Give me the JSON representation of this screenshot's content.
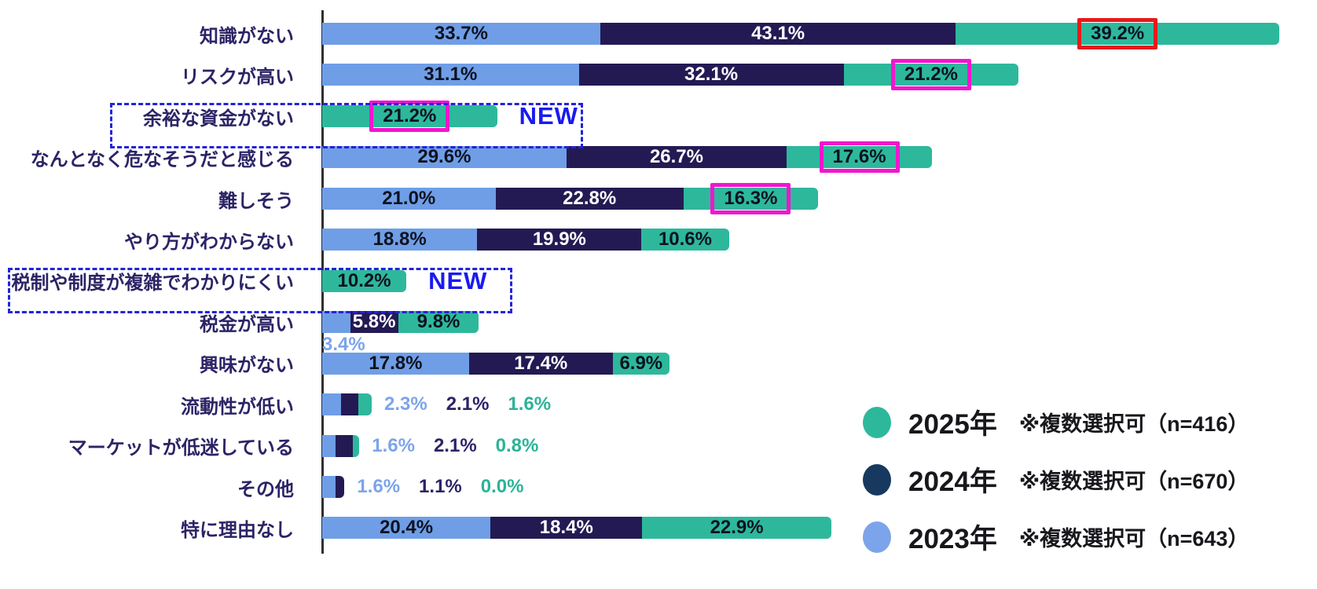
{
  "chart_data": {
    "type": "bar",
    "orientation": "horizontal-stacked",
    "title": "",
    "xlabel": "",
    "ylabel": "",
    "value_unit": "%",
    "categories": [
      "知識がない",
      "リスクが高い",
      "余裕な資金がない",
      "なんとなく危なそうだと感じる",
      "難しそう",
      "やり方がわからない",
      "税制や制度が複雑でわかりにくい",
      "税金が高い",
      "興味がない",
      "流動性が低い",
      "マーケットが低迷している",
      "その他",
      "特に理由なし"
    ],
    "series": [
      {
        "name": "2023年",
        "note": "※複数選択可（n=643）",
        "bar_color": "#6f9ee6",
        "text_color": "#7ca4ea",
        "values": [
          33.7,
          31.1,
          null,
          29.6,
          21.0,
          18.8,
          null,
          3.4,
          17.8,
          2.3,
          1.6,
          1.6,
          20.4
        ]
      },
      {
        "name": "2024年",
        "note": "※複数選択可（n=670）",
        "bar_color": "#241a53",
        "text_color": "#2b2466",
        "values": [
          43.1,
          32.1,
          null,
          26.7,
          22.8,
          19.9,
          null,
          5.8,
          17.4,
          2.1,
          2.1,
          1.1,
          18.4
        ]
      },
      {
        "name": "2025年",
        "note": "※複数選択可（n=416）",
        "bar_color": "#2db89c",
        "text_color": "#2bb398",
        "values": [
          39.2,
          21.2,
          21.2,
          17.6,
          16.3,
          10.6,
          10.2,
          9.8,
          6.9,
          1.6,
          0.8,
          0.0,
          22.9
        ]
      }
    ],
    "legend": [
      {
        "label": "2025年",
        "note": "※複数選択可（n=416）",
        "color": "#2db89c"
      },
      {
        "label": "2024年",
        "note": "※複数選択可（n=670）",
        "color": "#17395f"
      },
      {
        "label": "2023年",
        "note": "※複数選択可（n=643）",
        "color": "#7ca4ea"
      }
    ],
    "legend_position": "bottom-right",
    "grid": false,
    "new_badge_text": "NEW",
    "new_rows": [
      2,
      6
    ],
    "outside_label_rows": [
      9,
      10,
      11
    ],
    "below_label_rows": [
      7
    ],
    "highlights": [
      {
        "row": 0,
        "series": "2025年",
        "style": "red-box"
      },
      {
        "row": 1,
        "series": "2025年",
        "style": "magenta-box"
      },
      {
        "row": 2,
        "series": "2025年",
        "style": "magenta-box"
      },
      {
        "row": 3,
        "series": "2025年",
        "style": "magenta-box"
      },
      {
        "row": 4,
        "series": "2025年",
        "style": "magenta-box"
      }
    ],
    "colors": {
      "highlight_red": "#e8191b",
      "highlight_magenta": "#f116ce",
      "new_text": "#1a1af0",
      "dashed_outline": "#2323d9",
      "axis": "#2f2f2f",
      "category_text": "#2b2466",
      "label_on_light": "#0d1220",
      "label_on_dark": "#ffffff"
    }
  }
}
